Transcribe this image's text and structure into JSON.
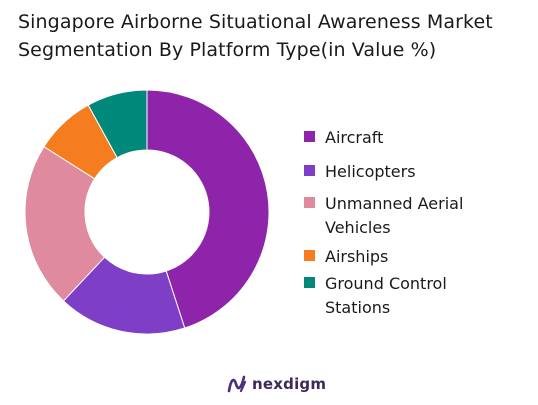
{
  "header": {
    "title_line1": "Singapore Airborne Situational Awareness Market",
    "title_line2": "Segmentation By Platform Type(in Value %)"
  },
  "chart_data": {
    "type": "pie",
    "variant": "donut",
    "title": "Singapore Airborne Situational Awareness Market Segmentation By Platform Type(in Value %)",
    "categories": [
      "Aircraft",
      "Helicopters",
      "Unmanned Aerial Vehicles",
      "Airships",
      "Ground Control Stations"
    ],
    "values": [
      45,
      17,
      22,
      8,
      8
    ],
    "colors": [
      "#8e24aa",
      "#7e3fc6",
      "#e08aa0",
      "#f57c1f",
      "#00897b"
    ],
    "legend_position": "right"
  },
  "legend": {
    "items": [
      {
        "label": "Aircraft",
        "color": "#8e24aa"
      },
      {
        "label": "Helicopters",
        "color": "#7e3fc6"
      },
      {
        "label": "Unmanned Aerial Vehicles",
        "color": "#e08aa0"
      },
      {
        "label": "Airships",
        "color": "#f57c1f"
      },
      {
        "label": "Ground Control Stations",
        "color": "#00897b"
      }
    ]
  },
  "footer": {
    "brand": "nexdigm",
    "brand_icon": "nexdigm-logo-icon",
    "brand_color": "#3b2b5a"
  }
}
